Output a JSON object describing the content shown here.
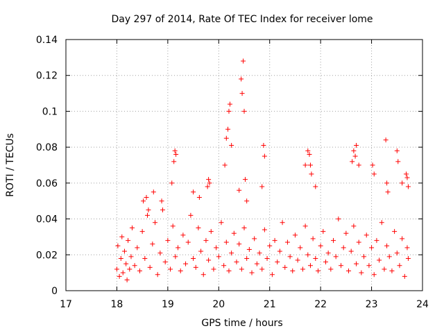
{
  "chart_data": {
    "type": "scatter",
    "title": "Day 297 of 2014, Rate Of TEC Index for receiver lome",
    "xlabel": "GPS time / hours",
    "ylabel": "ROTI / TECUs",
    "xlim": [
      17,
      24
    ],
    "ylim": [
      0,
      0.14
    ],
    "xticks": [
      "17",
      "18",
      "19",
      "20",
      "21",
      "22",
      "23",
      "24"
    ],
    "yticks": [
      "0",
      "0.02",
      "0.04",
      "0.06",
      "0.08",
      "0.1",
      "0.12",
      "0.14"
    ],
    "grid": true,
    "marker": "+",
    "color": "#ff0000",
    "series": [
      {
        "name": "ROTI",
        "x": [
          18.0,
          18.02,
          18.05,
          18.08,
          18.1,
          18.12,
          18.15,
          18.18,
          18.2,
          18.22,
          18.25,
          18.28,
          18.3,
          18.35,
          18.4,
          18.45,
          18.5,
          18.55,
          18.6,
          18.65,
          18.7,
          18.75,
          18.8,
          18.85,
          18.9,
          18.95,
          19.0,
          19.05,
          19.1,
          19.15,
          19.2,
          19.25,
          19.3,
          19.35,
          19.4,
          19.45,
          19.5,
          19.55,
          19.6,
          19.65,
          19.7,
          19.75,
          19.8,
          19.85,
          19.9,
          19.95,
          20.0,
          20.05,
          20.1,
          20.15,
          20.2,
          20.25,
          20.3,
          20.35,
          20.4,
          20.45,
          20.5,
          20.55,
          20.6,
          20.65,
          20.7,
          20.75,
          20.8,
          20.85,
          20.9,
          20.95,
          21.0,
          21.05,
          21.1,
          21.15,
          21.2,
          21.25,
          21.3,
          21.35,
          21.4,
          21.45,
          21.5,
          21.55,
          21.6,
          21.65,
          21.7,
          21.75,
          21.8,
          21.85,
          21.9,
          21.95,
          22.0,
          22.05,
          22.1,
          22.15,
          22.2,
          22.25,
          22.3,
          22.35,
          22.4,
          22.45,
          22.5,
          22.55,
          22.6,
          22.65,
          22.7,
          22.75,
          22.8,
          22.85,
          22.9,
          22.95,
          23.0,
          23.05,
          23.1,
          23.15,
          23.2,
          23.25,
          23.3,
          23.35,
          23.4,
          23.45,
          23.5,
          23.55,
          23.6,
          23.65,
          23.7,
          23.72,
          18.52,
          18.58,
          18.62,
          18.72,
          18.88,
          19.08,
          19.12,
          19.14,
          19.16,
          19.5,
          19.62,
          19.78,
          19.8,
          19.82,
          20.12,
          20.15,
          20.18,
          20.2,
          20.22,
          20.25,
          20.4,
          20.44,
          20.46,
          20.48,
          20.5,
          20.52,
          20.55,
          20.85,
          20.88,
          20.9,
          21.7,
          21.75,
          21.78,
          21.8,
          21.82,
          21.9,
          22.62,
          22.65,
          22.68,
          22.7,
          22.75,
          23.02,
          23.05,
          23.28,
          23.3,
          23.32,
          23.5,
          23.52,
          23.6,
          23.68,
          23.7,
          23.72
        ],
        "y": [
          0.012,
          0.025,
          0.008,
          0.018,
          0.03,
          0.01,
          0.022,
          0.015,
          0.006,
          0.028,
          0.012,
          0.019,
          0.035,
          0.014,
          0.024,
          0.011,
          0.033,
          0.018,
          0.042,
          0.013,
          0.026,
          0.038,
          0.009,
          0.021,
          0.045,
          0.016,
          0.028,
          0.012,
          0.036,
          0.019,
          0.024,
          0.011,
          0.031,
          0.015,
          0.027,
          0.042,
          0.018,
          0.013,
          0.035,
          0.022,
          0.009,
          0.028,
          0.017,
          0.033,
          0.012,
          0.024,
          0.019,
          0.038,
          0.014,
          0.027,
          0.011,
          0.021,
          0.032,
          0.016,
          0.026,
          0.012,
          0.035,
          0.018,
          0.023,
          0.01,
          0.029,
          0.015,
          0.021,
          0.012,
          0.034,
          0.018,
          0.025,
          0.009,
          0.028,
          0.016,
          0.022,
          0.038,
          0.013,
          0.027,
          0.019,
          0.011,
          0.031,
          0.017,
          0.024,
          0.012,
          0.036,
          0.02,
          0.014,
          0.029,
          0.018,
          0.011,
          0.025,
          0.033,
          0.016,
          0.021,
          0.012,
          0.028,
          0.019,
          0.04,
          0.014,
          0.024,
          0.032,
          0.011,
          0.022,
          0.036,
          0.015,
          0.027,
          0.01,
          0.019,
          0.031,
          0.014,
          0.024,
          0.009,
          0.028,
          0.017,
          0.038,
          0.012,
          0.025,
          0.019,
          0.011,
          0.033,
          0.021,
          0.014,
          0.029,
          0.008,
          0.024,
          0.018,
          0.05,
          0.052,
          0.045,
          0.055,
          0.05,
          0.06,
          0.072,
          0.078,
          0.076,
          0.055,
          0.052,
          0.058,
          0.062,
          0.06,
          0.07,
          0.085,
          0.09,
          0.1,
          0.104,
          0.081,
          0.056,
          0.118,
          0.11,
          0.128,
          0.1,
          0.062,
          0.05,
          0.058,
          0.081,
          0.075,
          0.07,
          0.078,
          0.076,
          0.07,
          0.065,
          0.058,
          0.072,
          0.078,
          0.075,
          0.081,
          0.07,
          0.07,
          0.065,
          0.084,
          0.06,
          0.055,
          0.078,
          0.072,
          0.06,
          0.065,
          0.063,
          0.058
        ]
      }
    ]
  }
}
